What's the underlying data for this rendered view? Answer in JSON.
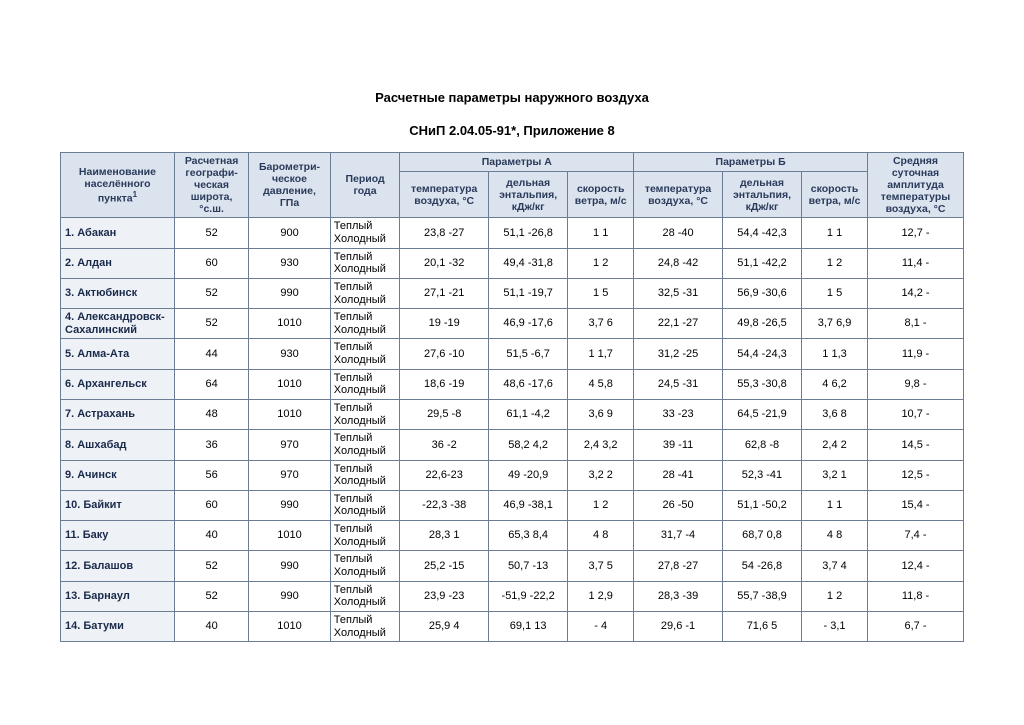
{
  "title": "Расчетные параметры наружного воздуха",
  "subtitle": "СНиП 2.04.05-91*,  Приложение 8",
  "table": {
    "type": "table",
    "header_bg": "#dbe3ee",
    "header_color": "#2a3a5a",
    "name_bg": "#eef2f7",
    "border_color": "#6b7c95",
    "columns": {
      "name": "Наименование населённого пункта",
      "name_sup": "1",
      "lat": "Расчетная географи­ческая широта, °с.ш.",
      "baro": "Барометри­ческое давление, ГПа",
      "period": "Период года",
      "group_a": "Параметры А",
      "group_b": "Параметры Б",
      "t": "температура воздуха, °С",
      "enth": "дельная энтальпия, кДж/кг",
      "wind": "скорость ветра, м/с",
      "amp": "Средняя суточная амплитуда температуры воздуха, °С"
    },
    "period_labels": {
      "warm": "Теплый",
      "cold": "Холодный"
    },
    "rows": [
      {
        "name": "1. Абакан",
        "lat": "52",
        "baro": "900",
        "a_t": "23,8 -27",
        "a_e": "51,1 -26,8",
        "a_v": "1 1",
        "b_t": "28 -40",
        "b_e": "54,4 -42,3",
        "b_v": "1 1",
        "amp": "12,7 -"
      },
      {
        "name": "2. Алдан",
        "lat": "60",
        "baro": "930",
        "a_t": "20,1 -32",
        "a_e": "49,4 -31,8",
        "a_v": "1 2",
        "b_t": "24,8 -42",
        "b_e": "51,1 -42,2",
        "b_v": "1 2",
        "amp": "11,4 -"
      },
      {
        "name": "3. Актюбинск",
        "lat": "52",
        "baro": "990",
        "a_t": "27,1 -21",
        "a_e": "51,1 -19,7",
        "a_v": "1 5",
        "b_t": "32,5 -31",
        "b_e": "56,9 -30,6",
        "b_v": "1 5",
        "amp": "14,2 -"
      },
      {
        "name": "4. Александровск-Сахалинский",
        "lat": "52",
        "baro": "1010",
        "a_t": "19 -19",
        "a_e": "46,9 -17,6",
        "a_v": "3,7 6",
        "b_t": "22,1 -27",
        "b_e": "49,8 -26,5",
        "b_v": "3,7 6,9",
        "amp": "8,1 -"
      },
      {
        "name": "5. Алма-Ата",
        "lat": "44",
        "baro": "930",
        "a_t": "27,6 -10",
        "a_e": "51,5 -6,7",
        "a_v": "1 1,7",
        "b_t": "31,2 -25",
        "b_e": "54,4 -24,3",
        "b_v": "1 1,3",
        "amp": "11,9 -"
      },
      {
        "name": "6. Архангельск",
        "lat": "64",
        "baro": "1010",
        "a_t": "18,6 -19",
        "a_e": "48,6 -17,6",
        "a_v": "4 5,8",
        "b_t": "24,5 -31",
        "b_e": "55,3 -30,8",
        "b_v": "4 6,2",
        "amp": "9,8 -"
      },
      {
        "name": "7. Астрахань",
        "lat": "48",
        "baro": "1010",
        "a_t": "29,5 -8",
        "a_e": "61,1 -4,2",
        "a_v": "3,6 9",
        "b_t": "33 -23",
        "b_e": "64,5 -21,9",
        "b_v": "3,6 8",
        "amp": "10,7 -"
      },
      {
        "name": "8. Ашхабад",
        "lat": "36",
        "baro": "970",
        "a_t": "36 -2",
        "a_e": "58,2 4,2",
        "a_v": "2,4 3,2",
        "b_t": "39 -11",
        "b_e": "62,8 -8",
        "b_v": "2,4 2",
        "amp": "14,5 -"
      },
      {
        "name": "9. Ачинск",
        "lat": "56",
        "baro": "970",
        "a_t": "22,6-23",
        "a_e": "49 -20,9",
        "a_v": "3,2 2",
        "b_t": "28 -41",
        "b_e": "52,3 -41",
        "b_v": "3,2 1",
        "amp": "12,5 -"
      },
      {
        "name": "10. Байкит",
        "lat": "60",
        "baro": "990",
        "a_t": "-22,3 -38",
        "a_e": "46,9 -38,1",
        "a_v": "1 2",
        "b_t": "26 -50",
        "b_e": "51,1 -50,2",
        "b_v": "1 1",
        "amp": "15,4 -"
      },
      {
        "name": "11. Баку",
        "lat": "40",
        "baro": "1010",
        "a_t": "28,3 1",
        "a_e": "65,3 8,4",
        "a_v": "4 8",
        "b_t": "31,7 -4",
        "b_e": "68,7 0,8",
        "b_v": "4 8",
        "amp": "7,4 -"
      },
      {
        "name": "12. Балашов",
        "lat": "52",
        "baro": "990",
        "a_t": "25,2 -15",
        "a_e": "50,7 -13",
        "a_v": "3,7 5",
        "b_t": "27,8 -27",
        "b_e": "54 -26,8",
        "b_v": "3,7 4",
        "amp": "12,4 -"
      },
      {
        "name": "13. Барнаул",
        "lat": "52",
        "baro": "990",
        "a_t": "23,9 -23",
        "a_e": "-51,9 -22,2",
        "a_v": "1 2,9",
        "b_t": "28,3 -39",
        "b_e": "55,7 -38,9",
        "b_v": "1 2",
        "amp": "11,8 -"
      },
      {
        "name": "14. Батуми",
        "lat": "40",
        "baro": "1010",
        "a_t": "25,9 4",
        "a_e": "69,1 13",
        "a_v": "- 4",
        "b_t": "29,6 -1",
        "b_e": "71,6 5",
        "b_v": "- 3,1",
        "amp": "6,7 -"
      }
    ]
  }
}
